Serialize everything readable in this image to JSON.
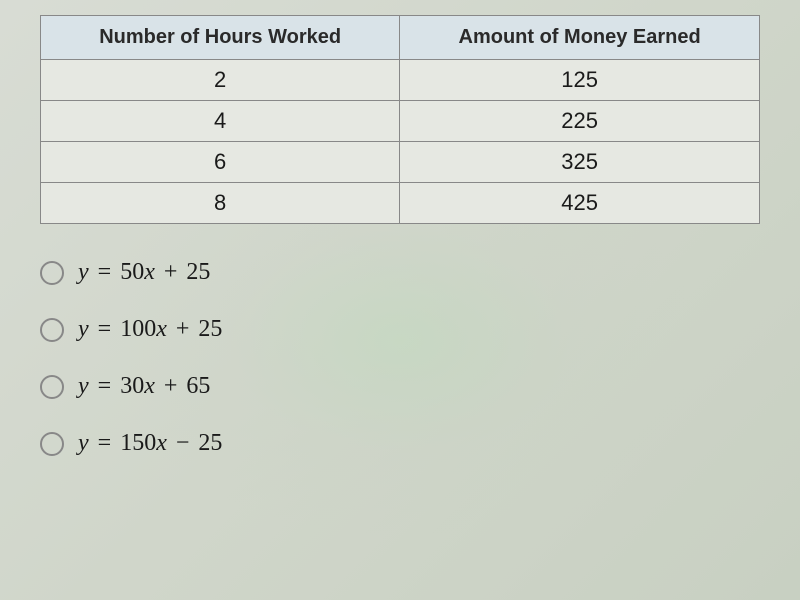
{
  "table": {
    "columns": [
      "Number of Hours Worked",
      "Amount of Money Earned"
    ],
    "rows": [
      [
        "2",
        "125"
      ],
      [
        "4",
        "225"
      ],
      [
        "6",
        "325"
      ],
      [
        "8",
        "425"
      ]
    ],
    "header_bg": "#d9e3e8",
    "cell_bg": "#e6e8e2",
    "border_color": "#888888",
    "header_fontsize": 20,
    "cell_fontsize": 22,
    "text_color": "#1a1a1a"
  },
  "options": [
    {
      "y": "y",
      "eq": "=",
      "coef": "50",
      "var": "x",
      "op": "+",
      "const": "25"
    },
    {
      "y": "y",
      "eq": "=",
      "coef": "100",
      "var": "x",
      "op": "+",
      "const": "25"
    },
    {
      "y": "y",
      "eq": "=",
      "coef": "30",
      "var": "x",
      "op": "+",
      "const": "65"
    },
    {
      "y": "y",
      "eq": "=",
      "coef": "150",
      "var": "x",
      "op": "−",
      "const": "25"
    }
  ],
  "style": {
    "radio_border": "#888888",
    "radio_size": 24,
    "equation_fontsize": 24,
    "equation_color": "#1a1a1a",
    "page_bg": "#d4d8cf"
  }
}
